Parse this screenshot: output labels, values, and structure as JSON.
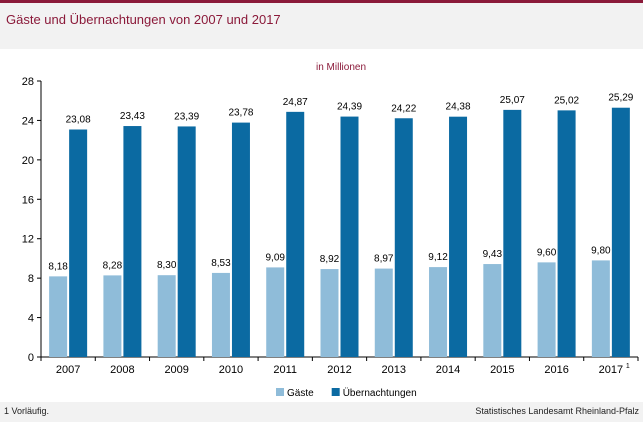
{
  "header": {
    "title": "Gäste und Übernachtungen von 2007 und 2017"
  },
  "footer": {
    "note": "1 Vorläufig.",
    "source": "Statistisches Landesamt Rheinland-Pfalz"
  },
  "colors": {
    "accent": "#8b1a3a",
    "gaeste": "#8fbcd9",
    "uebernachtungen": "#0b6aa2"
  },
  "chart_data": {
    "type": "bar",
    "title": "",
    "unit_label": "in Millionen",
    "categories": [
      "2007",
      "2008",
      "2009",
      "2010",
      "2011",
      "2012",
      "2013",
      "2014",
      "2015",
      "2016",
      "2017"
    ],
    "category_footnote": {
      "index": 10,
      "mark": "1"
    },
    "series": [
      {
        "name": "Gäste",
        "color": "#8fbcd9",
        "values": [
          8.18,
          8.28,
          8.3,
          8.53,
          9.09,
          8.92,
          8.97,
          9.12,
          9.43,
          9.6,
          9.8
        ],
        "labels": [
          "8,18",
          "8,28",
          "8,30",
          "8,53",
          "9,09",
          "8,92",
          "8,97",
          "9,12",
          "9,43",
          "9,60",
          "9,80"
        ]
      },
      {
        "name": "Übernachtungen",
        "color": "#0b6aa2",
        "values": [
          23.08,
          23.43,
          23.39,
          23.78,
          24.87,
          24.39,
          24.22,
          24.38,
          25.07,
          25.02,
          25.29
        ],
        "labels": [
          "23,08",
          "23,43",
          "23,39",
          "23,78",
          "24,87",
          "24,39",
          "24,22",
          "24,38",
          "25,07",
          "25,02",
          "25,29"
        ]
      }
    ],
    "ylim": [
      0,
      28
    ],
    "yticks": [
      0,
      4,
      8,
      12,
      16,
      20,
      24,
      28
    ],
    "xlabel": "",
    "ylabel": "",
    "grid": false,
    "legend": "bottom"
  }
}
